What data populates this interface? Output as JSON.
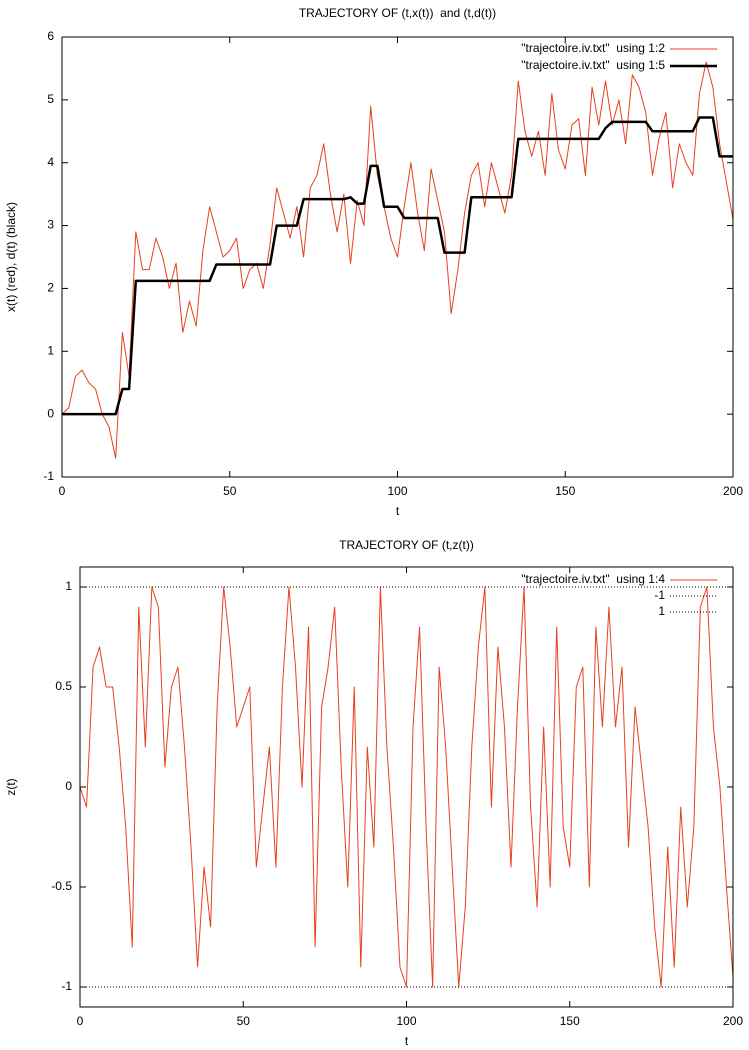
{
  "chart_data": [
    {
      "type": "line",
      "title": "TRAJECTORY OF (t,x(t))  and (t,d(t))",
      "x_label": "t",
      "y_label": "x(t) (red), d(t) (black)",
      "xlim": [
        0,
        200
      ],
      "xticks": [
        0,
        50,
        100,
        150,
        200
      ],
      "ylim": [
        -1,
        6
      ],
      "yticks": [
        -1,
        0,
        1,
        2,
        3,
        4,
        5,
        6
      ],
      "legend": "upper right",
      "x": [
        0,
        2,
        4,
        6,
        8,
        10,
        12,
        14,
        16,
        18,
        20,
        22,
        24,
        26,
        28,
        30,
        32,
        34,
        36,
        38,
        40,
        42,
        44,
        46,
        48,
        50,
        52,
        54,
        56,
        58,
        60,
        62,
        64,
        66,
        68,
        70,
        72,
        74,
        76,
        78,
        80,
        82,
        84,
        86,
        88,
        90,
        92,
        94,
        96,
        98,
        100,
        102,
        104,
        106,
        108,
        110,
        112,
        114,
        116,
        118,
        120,
        122,
        124,
        126,
        128,
        130,
        132,
        134,
        136,
        138,
        140,
        142,
        144,
        146,
        148,
        150,
        152,
        154,
        156,
        158,
        160,
        162,
        164,
        166,
        168,
        170,
        172,
        174,
        176,
        178,
        180,
        182,
        184,
        186,
        188,
        190,
        192,
        194,
        196,
        198,
        200
      ],
      "series": [
        {
          "name": "\"trajectoire.iv.txt\"  using 1:2",
          "color": "#e8401c",
          "width": 1,
          "dash": "solid",
          "values": [
            0,
            0.1,
            0.6,
            0.7,
            0.5,
            0.4,
            0.0,
            -0.2,
            -0.7,
            1.3,
            0.6,
            2.9,
            2.3,
            2.3,
            2.8,
            2.5,
            2.0,
            2.4,
            1.3,
            1.8,
            1.4,
            2.6,
            3.3,
            2.9,
            2.5,
            2.6,
            2.8,
            2.0,
            2.3,
            2.4,
            2.0,
            2.7,
            3.6,
            3.2,
            2.8,
            3.3,
            2.5,
            3.6,
            3.8,
            4.3,
            3.5,
            2.9,
            3.5,
            2.4,
            3.4,
            3.0,
            4.9,
            3.8,
            3.3,
            2.8,
            2.5,
            3.3,
            4.0,
            3.2,
            2.6,
            3.9,
            3.4,
            2.9,
            1.6,
            2.3,
            3.2,
            3.8,
            4.0,
            3.3,
            4.0,
            3.6,
            3.2,
            3.8,
            5.3,
            4.5,
            4.1,
            4.5,
            3.8,
            5.1,
            4.2,
            3.9,
            4.6,
            4.7,
            3.8,
            5.2,
            4.6,
            5.3,
            4.6,
            5.0,
            4.3,
            5.4,
            5.2,
            4.8,
            3.8,
            4.4,
            4.8,
            3.6,
            4.3,
            4.0,
            3.8,
            5.1,
            5.6,
            5.2,
            4.3,
            3.7,
            3.1
          ]
        },
        {
          "name": "\"trajectoire.iv.txt\"  using 1:5",
          "color": "#000000",
          "width": 2.5,
          "dash": "solid",
          "values": [
            0,
            0,
            0,
            0,
            0,
            0,
            0,
            0,
            0,
            0.4,
            0.4,
            2.12,
            2.12,
            2.12,
            2.12,
            2.12,
            2.12,
            2.12,
            2.12,
            2.12,
            2.12,
            2.12,
            2.12,
            2.38,
            2.38,
            2.38,
            2.38,
            2.38,
            2.38,
            2.38,
            2.38,
            2.38,
            3.0,
            3.0,
            3.0,
            3.0,
            3.42,
            3.42,
            3.42,
            3.42,
            3.42,
            3.42,
            3.42,
            3.45,
            3.35,
            3.35,
            3.95,
            3.95,
            3.3,
            3.3,
            3.3,
            3.12,
            3.12,
            3.12,
            3.12,
            3.12,
            3.12,
            2.57,
            2.57,
            2.57,
            2.57,
            3.45,
            3.45,
            3.45,
            3.45,
            3.45,
            3.45,
            3.45,
            4.38,
            4.38,
            4.38,
            4.38,
            4.38,
            4.38,
            4.38,
            4.38,
            4.38,
            4.38,
            4.38,
            4.38,
            4.38,
            4.55,
            4.65,
            4.65,
            4.65,
            4.65,
            4.65,
            4.65,
            4.5,
            4.5,
            4.5,
            4.5,
            4.5,
            4.5,
            4.5,
            4.72,
            4.72,
            4.72,
            4.1,
            4.1,
            4.1
          ]
        }
      ]
    },
    {
      "type": "line",
      "title": "TRAJECTORY OF (t,z(t))",
      "x_label": "t",
      "y_label": "z(t)",
      "xlim": [
        0,
        200
      ],
      "xticks": [
        0,
        50,
        100,
        150,
        200
      ],
      "ylim": [
        -1.1,
        1.1
      ],
      "yticks": [
        -1,
        -0.5,
        0,
        0.5,
        1
      ],
      "legend": "upper right",
      "x": [
        0,
        2,
        4,
        6,
        8,
        10,
        12,
        14,
        16,
        18,
        20,
        22,
        24,
        26,
        28,
        30,
        32,
        34,
        36,
        38,
        40,
        42,
        44,
        46,
        48,
        50,
        52,
        54,
        56,
        58,
        60,
        62,
        64,
        66,
        68,
        70,
        72,
        74,
        76,
        78,
        80,
        82,
        84,
        86,
        88,
        90,
        92,
        94,
        96,
        98,
        100,
        102,
        104,
        106,
        108,
        110,
        112,
        114,
        116,
        118,
        120,
        122,
        124,
        126,
        128,
        130,
        132,
        134,
        136,
        138,
        140,
        142,
        144,
        146,
        148,
        150,
        152,
        154,
        156,
        158,
        160,
        162,
        164,
        166,
        168,
        170,
        172,
        174,
        176,
        178,
        180,
        182,
        184,
        186,
        188,
        190,
        192,
        194,
        196,
        198,
        200
      ],
      "series": [
        {
          "name": "\"trajectoire.iv.txt\"  using 1:4",
          "color": "#e8401c",
          "width": 1,
          "dash": "solid",
          "values": [
            0,
            -0.1,
            0.6,
            0.7,
            0.5,
            0.5,
            0.2,
            -0.2,
            -0.8,
            0.9,
            0.2,
            1.0,
            0.9,
            0.1,
            0.5,
            0.6,
            0.2,
            -0.3,
            -0.9,
            -0.4,
            -0.7,
            0.4,
            1.0,
            0.7,
            0.3,
            0.4,
            0.5,
            -0.4,
            -0.1,
            0.2,
            -0.4,
            0.5,
            1.0,
            0.6,
            0.0,
            0.8,
            -0.8,
            0.4,
            0.6,
            0.9,
            0.1,
            -0.5,
            0.5,
            -0.9,
            0.2,
            -0.3,
            1.0,
            0.2,
            -0.3,
            -0.9,
            -1.0,
            0.3,
            0.8,
            -0.2,
            -1.0,
            0.6,
            0.2,
            -0.4,
            -1.0,
            -0.6,
            0.2,
            0.7,
            1.0,
            -0.1,
            0.7,
            0.3,
            -0.4,
            0.4,
            1.0,
            -0.1,
            -0.6,
            0.3,
            -0.5,
            0.8,
            -0.2,
            -0.4,
            0.5,
            0.6,
            -0.5,
            0.8,
            0.3,
            0.9,
            0.3,
            0.6,
            -0.3,
            0.4,
            0.1,
            -0.2,
            -0.7,
            -1.0,
            -0.3,
            -0.9,
            -0.1,
            -0.6,
            -0.2,
            0.9,
            1.0,
            0.3,
            0.0,
            -0.5,
            -0.95
          ]
        },
        {
          "name": "-1",
          "color": "#000000",
          "width": 1,
          "dash": "dotted",
          "x": [
            0,
            200
          ],
          "values": [
            -1,
            -1
          ]
        },
        {
          "name": "1",
          "color": "#000000",
          "width": 1,
          "dash": "dotted",
          "x": [
            0,
            200
          ],
          "values": [
            1,
            1
          ]
        }
      ]
    }
  ]
}
